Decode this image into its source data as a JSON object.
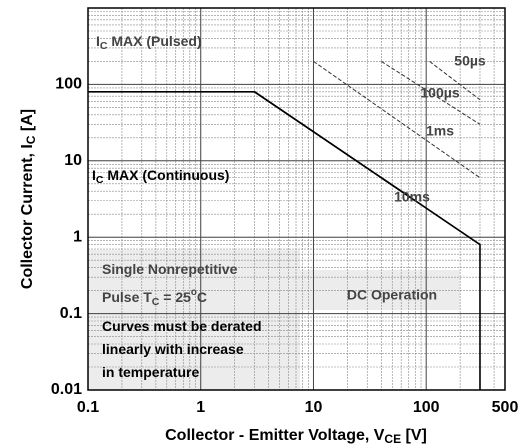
{
  "chart_data": {
    "type": "line",
    "xlabel": [
      "Collector - Emitter Voltage, V",
      "CE",
      " [V]"
    ],
    "ylabel": [
      "Collector Current, I",
      "C",
      " [A]"
    ],
    "xlim": [
      0.1,
      500
    ],
    "ylim": [
      0.01,
      1000
    ],
    "xticks": [
      0.1,
      1,
      10,
      100,
      500
    ],
    "yticks": [
      0.01,
      0.1,
      1,
      10,
      100
    ],
    "log_x": true,
    "log_y": true,
    "grid": true,
    "minor_grid": true,
    "annotations": [
      [
        "I",
        "C",
        " MAX (Pulsed)"
      ],
      [
        "I",
        "C",
        " MAX (Continuous)"
      ]
    ],
    "note": [
      [
        "Single Nonrepetitive"
      ],
      [
        "Pulse T",
        "C",
        " = 25",
        "o",
        "C"
      ],
      [
        "Curves must be derated"
      ],
      [
        "linearly with increase"
      ],
      [
        "in temperature"
      ]
    ],
    "series": [
      {
        "name": "50µs",
        "color": "#333333",
        "dashed": true,
        "x": [
          107,
          300
        ],
        "values": [
          200,
          63
        ]
      },
      {
        "name": "100µs",
        "color": "#333333",
        "dashed": true,
        "x": [
          40,
          300
        ],
        "values": [
          200,
          30
        ]
      },
      {
        "name": "1ms",
        "color": "#333333",
        "dashed": true,
        "x": [
          10,
          300
        ],
        "values": [
          200,
          6
        ]
      },
      {
        "name": "10ms",
        "color": "#000000",
        "dashed": false,
        "x": [
          3,
          75
        ],
        "values": [
          80,
          3.2
        ]
      },
      {
        "name": "DC Operation",
        "color": "#000000",
        "dashed": false,
        "x": [
          0.1,
          3,
          300,
          300
        ],
        "values": [
          80,
          80,
          0.8,
          0.01
        ]
      }
    ]
  }
}
